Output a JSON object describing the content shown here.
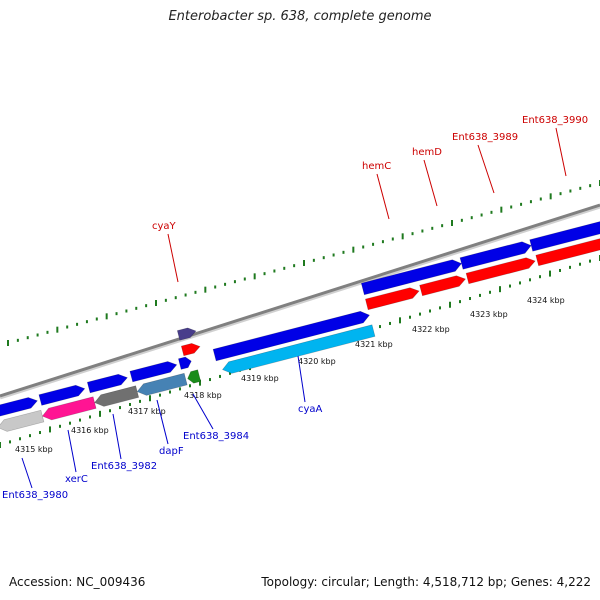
{
  "title": "Enterobacter sp. 638, complete genome",
  "footer": {
    "accession": "Accession: NC_009436",
    "summary": "Topology: circular; Length: 4,518,712 bp; Genes: 4,222"
  },
  "colors": {
    "background": "#ffffff",
    "tick": "#1f7a1f",
    "axis": "#808080",
    "forward_label": "#cc0000",
    "reverse_label": "#0000cc",
    "gene_blue": "#0000e6",
    "gene_red": "#ff0000",
    "gene_cyan": "#00b4f0",
    "gene_magenta": "#ff1493",
    "gene_gray": "#707070",
    "gene_steel": "#4682b4",
    "gene_purple": "#483d8b",
    "gene_green": "#1a8c1a",
    "gene_light_gray": "#c8c8c8"
  },
  "ticks": [
    {
      "label": "4315 kbp"
    },
    {
      "label": "4316 kbp"
    },
    {
      "label": "4317 kbp"
    },
    {
      "label": "4318 kbp"
    },
    {
      "label": "4319 kbp"
    },
    {
      "label": "4320 kbp"
    },
    {
      "label": "4321 kbp"
    },
    {
      "label": "4322 kbp"
    },
    {
      "label": "4323 kbp"
    },
    {
      "label": "4324 kbp"
    }
  ],
  "forward_labels": [
    {
      "name": "cyaY"
    },
    {
      "name": "hemC"
    },
    {
      "name": "hemD"
    },
    {
      "name": "Ent638_3989"
    },
    {
      "name": "Ent638_3990"
    }
  ],
  "reverse_labels": [
    {
      "name": "Ent638_3980"
    },
    {
      "name": "xerC"
    },
    {
      "name": "Ent638_3982"
    },
    {
      "name": "dapF"
    },
    {
      "name": "Ent638_3984"
    },
    {
      "name": "cyaA"
    }
  ]
}
